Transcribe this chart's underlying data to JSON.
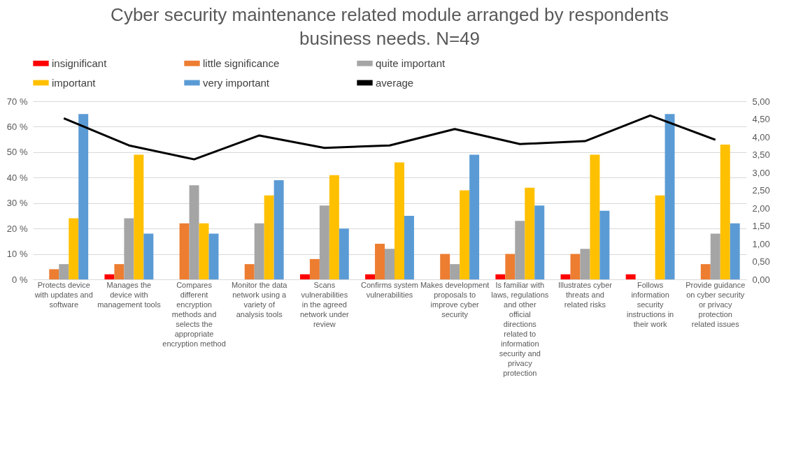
{
  "chart_data": {
    "type": "bar",
    "title": "Cyber security maintenance related module arranged by respondents business needs. N=49",
    "categories": [
      "Protects device with updates and software",
      "Manages the device with management tools",
      "Compares different encryption methods and selects the appropriate encryption method",
      "Monitor the data network using a variety of analysis tools",
      "Scans vulnerabilities in the agreed network under review",
      "Confirms system vulnerabilities",
      "Makes development proposals to improve cyber security",
      "Is familiar with laws, regulations and other official directions related to information security and privacy protection",
      "Illustrates cyber threats and related risks",
      "Follows information security instructions in their work",
      "Provide guidance on cyber security or privacy protection related issues"
    ],
    "series": [
      {
        "name": "insignificant",
        "color": "#ff0000",
        "values": [
          0,
          2,
          0,
          0,
          2,
          2,
          0,
          2,
          2,
          2,
          0
        ]
      },
      {
        "name": "little significance",
        "color": "#ed7d31",
        "values": [
          4,
          6,
          22,
          6,
          8,
          14,
          10,
          10,
          10,
          0,
          6
        ]
      },
      {
        "name": "quite important",
        "color": "#a5a5a5",
        "values": [
          6,
          24,
          37,
          22,
          29,
          12,
          6,
          23,
          12,
          0,
          18
        ]
      },
      {
        "name": "important",
        "color": "#ffc000",
        "values": [
          24,
          49,
          22,
          33,
          41,
          46,
          35,
          36,
          49,
          33,
          53
        ]
      },
      {
        "name": "very important",
        "color": "#5b9bd5",
        "values": [
          65,
          18,
          18,
          39,
          20,
          25,
          49,
          29,
          27,
          65,
          22
        ]
      },
      {
        "name": "average",
        "type": "line",
        "axis": "y2",
        "color": "#000000",
        "values": [
          4.52,
          3.76,
          3.37,
          4.04,
          3.69,
          3.76,
          4.22,
          3.8,
          3.88,
          4.6,
          3.92
        ]
      }
    ],
    "ylim": [
      0,
      70
    ],
    "yticks": [
      {
        "value": 0,
        "label": "0 %"
      },
      {
        "value": 10,
        "label": "10 %"
      },
      {
        "value": 20,
        "label": "20 %"
      },
      {
        "value": 30,
        "label": "30 %"
      },
      {
        "value": 40,
        "label": "40 %"
      },
      {
        "value": 50,
        "label": "50 %"
      },
      {
        "value": 60,
        "label": "60 %"
      },
      {
        "value": 70,
        "label": "70 %"
      }
    ],
    "y2lim": [
      0,
      5
    ],
    "y2ticks": [
      {
        "value": 0,
        "label": "0,00"
      },
      {
        "value": 0.5,
        "label": "0,50"
      },
      {
        "value": 1,
        "label": "1,00"
      },
      {
        "value": 1.5,
        "label": "1,50"
      },
      {
        "value": 2,
        "label": "2,00"
      },
      {
        "value": 2.5,
        "label": "2,50"
      },
      {
        "value": 3,
        "label": "3,00"
      },
      {
        "value": 3.5,
        "label": "3,50"
      },
      {
        "value": 4,
        "label": "4,00"
      },
      {
        "value": 4.5,
        "label": "4,50"
      },
      {
        "value": 5,
        "label": "5,00"
      }
    ],
    "grid": "y",
    "legend": "top"
  }
}
